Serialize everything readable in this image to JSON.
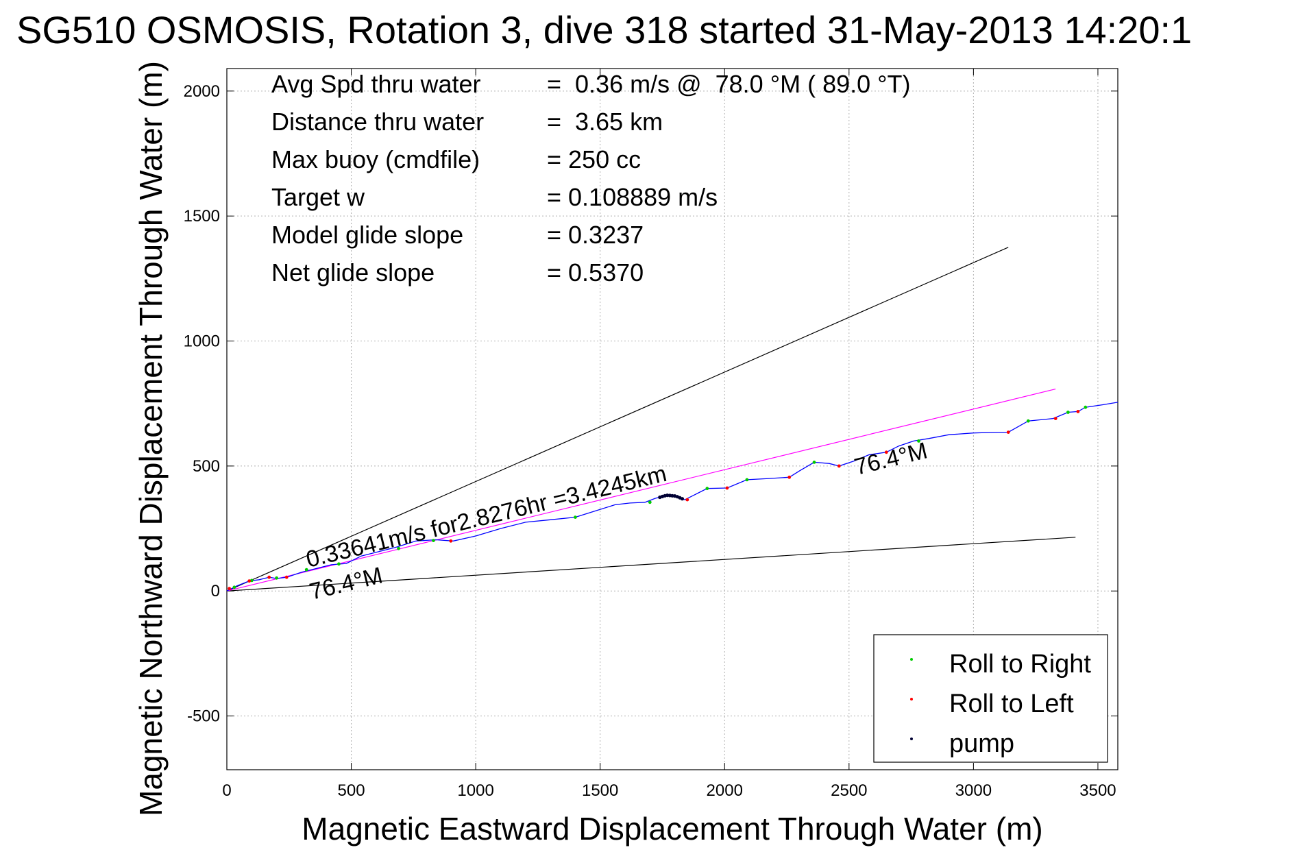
{
  "chart_data": {
    "type": "line",
    "title": "SG510 OSMOSIS, Rotation 3, dive 318 started 31-May-2013 14:20:1",
    "xlabel": "Magnetic Eastward Displacement Through Water (m)",
    "ylabel": "Magnetic Northward Displacement Through Water (m)",
    "xlim": [
      0,
      3580
    ],
    "ylim": [
      -715,
      2090
    ],
    "xticks": [
      0,
      500,
      1000,
      1500,
      2000,
      2500,
      3000,
      3500
    ],
    "yticks": [
      -500,
      0,
      500,
      1000,
      1500,
      2000
    ],
    "xtick_labels": [
      "0",
      "500",
      "1000",
      "1500",
      "2000",
      "2500",
      "3000",
      "3500"
    ],
    "ytick_labels": [
      "-500",
      "0",
      "500",
      "1000",
      "1500",
      "2000"
    ],
    "grid": true,
    "legend_position": "bottom-right",
    "colors": {
      "track": "#0000ff",
      "heading": "#ff00ff",
      "bounds": "#000000",
      "roll_right": "#00cc00",
      "roll_left": "#ff0000",
      "pump": "#000033"
    },
    "info_rows": [
      {
        "label": "Avg Spd thru water",
        "value": "=  0.36 m/s @  78.0 °M ( 89.0 °T)"
      },
      {
        "label": "Distance thru water",
        "value": "=  3.65 km"
      },
      {
        "label": "Max buoy (cmdfile)",
        "value": "= 250 cc"
      },
      {
        "label": "Target w",
        "value": "= 0.108889 m/s"
      },
      {
        "label": "Model glide slope",
        "value": "= 0.3237"
      },
      {
        "label": "Net glide slope",
        "value": "= 0.5370"
      }
    ],
    "annotations": {
      "speed_text": "0.33641m/s for2.8276hr =3.4245km",
      "heading_near": "76.4°M",
      "heading_far": "76.4°M"
    },
    "legend": [
      {
        "name": "Roll to Right",
        "color": "#00cc00"
      },
      {
        "name": "Roll to Left",
        "color": "#ff0000"
      },
      {
        "name": "pump",
        "color": "#000033"
      }
    ],
    "series": [
      {
        "name": "track",
        "x": [
          0,
          40,
          90,
          130,
          170,
          200,
          240,
          300,
          360,
          420,
          480,
          540,
          600,
          680,
          760,
          840,
          910,
          1000,
          1100,
          1200,
          1300,
          1400,
          1480,
          1560,
          1620,
          1680,
          1720,
          1760,
          1800,
          1840,
          1880,
          1930,
          2010,
          2090,
          2180,
          2260,
          2300,
          2360,
          2420,
          2460,
          2520,
          2580,
          2650,
          2700,
          2760,
          2820,
          2900,
          3000,
          3100,
          3140,
          3220,
          3320,
          3380,
          3420,
          3450,
          3520,
          3580
        ],
        "y": [
          0,
          20,
          40,
          45,
          55,
          50,
          55,
          75,
          90,
          105,
          110,
          140,
          155,
          175,
          200,
          205,
          200,
          220,
          250,
          275,
          285,
          295,
          320,
          345,
          352,
          355,
          370,
          382,
          380,
          365,
          385,
          410,
          412,
          445,
          450,
          455,
          480,
          515,
          510,
          500,
          520,
          545,
          555,
          580,
          600,
          610,
          625,
          632,
          635,
          635,
          680,
          690,
          715,
          718,
          735,
          745,
          755
        ]
      },
      {
        "name": "heading",
        "x": [
          0,
          3330
        ],
        "y": [
          0,
          808
        ]
      },
      {
        "name": "bound_upper",
        "x": [
          0,
          3140
        ],
        "y": [
          0,
          1375
        ]
      },
      {
        "name": "bound_lower",
        "x": [
          0,
          3410
        ],
        "y": [
          0,
          215
        ]
      },
      {
        "name": "Roll to Right",
        "x": [
          30,
          100,
          200,
          320,
          450,
          690,
          830,
          1400,
          1700,
          1930,
          2090,
          2360,
          2780,
          3220,
          3380,
          3450
        ],
        "y": [
          15,
          42,
          52,
          85,
          108,
          170,
          202,
          295,
          355,
          410,
          445,
          515,
          600,
          680,
          715,
          735
        ]
      },
      {
        "name": "Roll to Left",
        "x": [
          10,
          90,
          170,
          240,
          900,
          1850,
          2010,
          2260,
          2460,
          2650,
          3140,
          3330,
          3420
        ],
        "y": [
          10,
          40,
          55,
          55,
          200,
          365,
          412,
          455,
          500,
          555,
          635,
          690,
          718
        ]
      },
      {
        "name": "pump",
        "x": [
          1740,
          1750,
          1760,
          1770,
          1780,
          1790,
          1800,
          1810,
          1820,
          1830
        ],
        "y": [
          375,
          378,
          381,
          383,
          382,
          381,
          380,
          377,
          373,
          369
        ]
      }
    ]
  }
}
